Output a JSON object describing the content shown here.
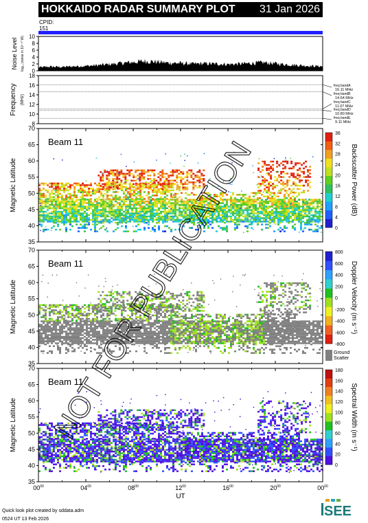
{
  "header": {
    "title": "HOKKAIDO RADAR SUMMARY PLOT",
    "date": "31 Jan 2026",
    "cpid_label": "CPID:",
    "cpid_value": "151",
    "cpid_color": "#2020ff"
  },
  "watermark": "NOT FOR PUBLICATION",
  "footer": {
    "line1": "Quick look plot created by sddata.adm",
    "line2": "0524 UT 13 Feb 2026",
    "logo_text": "ISEE",
    "logo_color": "#1a7a78"
  },
  "chart_data": [
    {
      "type": "area",
      "panel": "noise",
      "ylabel": "Noise Level",
      "ylabel_sub": "log₁₀ (noise in 10⁻¹⁰ W)",
      "ylabel_sub_display": "log(noise in 10",
      "ylim": [
        0,
        10
      ],
      "yticks": [
        "0",
        "2",
        "4",
        "6",
        "8",
        "10"
      ],
      "x": [
        0,
        1,
        2,
        3,
        4,
        5,
        6,
        7,
        8,
        9,
        10,
        11,
        12,
        13,
        14,
        15,
        16,
        17,
        18,
        19,
        20,
        21,
        22,
        23,
        24
      ],
      "values": [
        1.0,
        1.2,
        1.1,
        1.3,
        1.4,
        1.6,
        1.9,
        2.2,
        2.5,
        2.8,
        2.6,
        2.3,
        2.2,
        2.0,
        2.1,
        2.0,
        1.9,
        2.0,
        2.2,
        2.4,
        2.1,
        1.8,
        1.6,
        1.4,
        1.3
      ]
    },
    {
      "type": "line",
      "panel": "frequency",
      "ylabel": "Frequency",
      "ylabel_sub": "(MHz)",
      "ylim": [
        8,
        18
      ],
      "yticks": [
        "8",
        "10",
        "12",
        "14",
        "16",
        "18"
      ],
      "series": [
        {
          "name": "freq bandA",
          "label": "16.11 MHz",
          "values": [
            16.11
          ]
        },
        {
          "name": "freq bandB",
          "label": "14.64 MHz",
          "values": [
            14.64
          ]
        },
        {
          "name": "freq bandC",
          "label": "11.07 MHz",
          "values": [
            11.07
          ]
        },
        {
          "name": "freq bandD",
          "label": "10.80 MHz",
          "values": [
            10.8
          ]
        },
        {
          "name": "freq bandE",
          "label": "9.11 MHz",
          "values": [
            9.11
          ]
        }
      ]
    },
    {
      "type": "heatmap",
      "panel": "power",
      "beam_label": "Beam 11",
      "ylabel": "Magnetic Latitude",
      "ylim": [
        35,
        70
      ],
      "yticks": [
        "35",
        "40",
        "45",
        "50",
        "55",
        "60",
        "65",
        "70"
      ],
      "colorbar_label": "Backscatter Power (dB)",
      "colorbar_ticks": [
        "0",
        "4",
        "8",
        "12",
        "16",
        "20",
        "24",
        "28",
        "32",
        "36"
      ],
      "colorbar_range": [
        0,
        36
      ]
    },
    {
      "type": "heatmap",
      "panel": "velocity",
      "beam_label": "Beam 11",
      "ylabel": "Magnetic Latitude",
      "ylim": [
        35,
        70
      ],
      "yticks": [
        "35",
        "40",
        "45",
        "50",
        "55",
        "60",
        "65",
        "70"
      ],
      "colorbar_label": "Doppler Velocity (m s⁻¹)",
      "colorbar_ticks": [
        "-800",
        "-600",
        "-400",
        "-200",
        "0",
        "200",
        "400",
        "600",
        "800"
      ],
      "colorbar_range": [
        -800,
        800
      ],
      "ground_scatter_label": "Ground Scatter",
      "ground_scatter_color": "#808080"
    },
    {
      "type": "heatmap",
      "panel": "width",
      "beam_label": "Beam 11",
      "ylabel": "Magnetic Latitude",
      "ylim": [
        35,
        70
      ],
      "yticks": [
        "35",
        "40",
        "45",
        "50",
        "55",
        "60",
        "65",
        "70"
      ],
      "colorbar_label": "Spectral Width (m s⁻¹)",
      "colorbar_ticks": [
        "0",
        "20",
        "40",
        "60",
        "80",
        "100",
        "120",
        "140",
        "160",
        "180"
      ],
      "colorbar_range": [
        0,
        180
      ],
      "xlabel": "UT",
      "xticks": [
        "00",
        "04",
        "08",
        "12",
        "16",
        "20",
        "00"
      ],
      "xtick_sup": "00",
      "xlim": [
        0,
        24
      ]
    }
  ]
}
